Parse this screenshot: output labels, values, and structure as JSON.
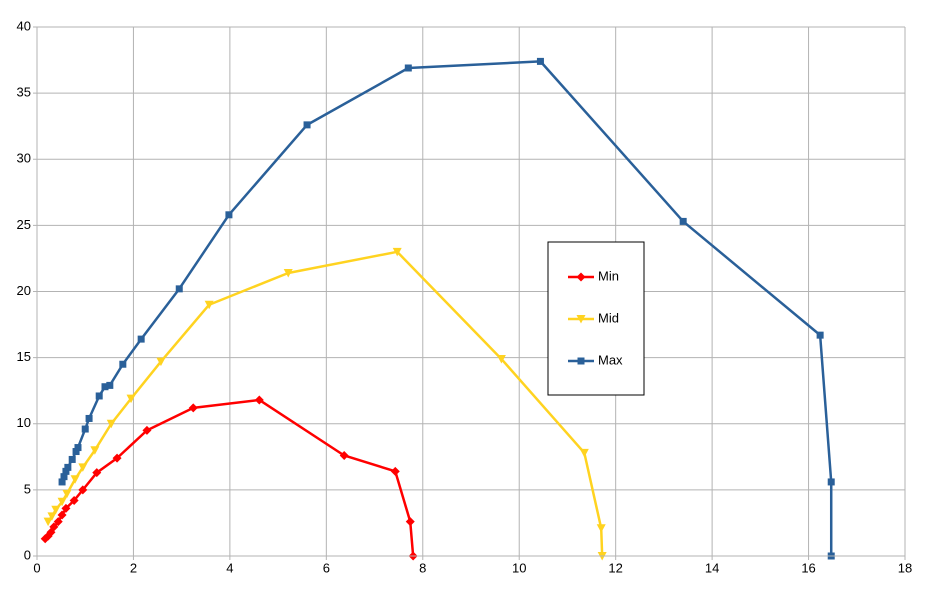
{
  "chart_data": {
    "type": "line",
    "xlim": [
      0,
      18
    ],
    "xticks": [
      0,
      2,
      4,
      6,
      8,
      10,
      12,
      14,
      16,
      18
    ],
    "ylim": [
      0,
      40
    ],
    "yticks": [
      0,
      5,
      10,
      15,
      20,
      25,
      30,
      35,
      40
    ],
    "grid": true,
    "legend": "center-right",
    "series": [
      {
        "name": "Min",
        "color": "#ff0000",
        "marker": "diamond",
        "x": [
          0.17,
          0.23,
          0.29,
          0.35,
          0.44,
          0.52,
          0.6,
          0.77,
          0.95,
          1.24,
          1.66,
          2.28,
          3.24,
          4.61,
          6.37,
          7.43,
          7.74,
          7.8
        ],
        "values": [
          1.3,
          1.5,
          1.8,
          2.2,
          2.6,
          3.1,
          3.6,
          4.2,
          5.0,
          6.3,
          7.4,
          9.5,
          11.2,
          11.8,
          7.6,
          6.4,
          2.6,
          0
        ]
      },
      {
        "name": "Mid",
        "color": "#ffd320",
        "marker": "triangle",
        "x": [
          0.23,
          0.31,
          0.39,
          0.52,
          0.62,
          0.79,
          0.95,
          1.2,
          1.54,
          1.95,
          2.57,
          3.57,
          5.21,
          7.47,
          9.63,
          11.35,
          11.7,
          11.72
        ],
        "values": [
          2.6,
          3.0,
          3.5,
          4.1,
          4.7,
          5.8,
          6.7,
          8.0,
          10.0,
          11.9,
          14.7,
          19.0,
          21.4,
          23.0,
          14.9,
          7.8,
          2.1,
          0
        ]
      },
      {
        "name": "Max",
        "color": "#2a6099",
        "marker": "square",
        "x": [
          0.52,
          0.56,
          0.6,
          0.64,
          0.73,
          0.81,
          0.85,
          1.0,
          1.08,
          1.29,
          1.41,
          1.51,
          1.78,
          2.16,
          2.95,
          3.98,
          5.6,
          7.7,
          10.44,
          13.4,
          16.24,
          16.47,
          16.47
        ],
        "values": [
          5.6,
          6.0,
          6.4,
          6.7,
          7.3,
          7.9,
          8.2,
          9.6,
          10.4,
          12.1,
          12.8,
          12.9,
          14.5,
          16.4,
          20.2,
          25.8,
          32.6,
          36.9,
          37.4,
          25.3,
          16.7,
          5.6,
          0
        ]
      }
    ]
  }
}
